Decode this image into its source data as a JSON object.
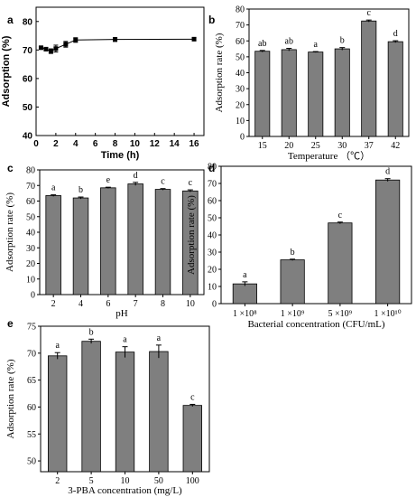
{
  "chart_data": [
    {
      "panel": "a",
      "type": "line",
      "x": [
        0.5,
        1,
        1.5,
        2,
        3,
        4,
        8,
        16
      ],
      "values": [
        70.8,
        70.3,
        69.6,
        70.5,
        72.0,
        73.5,
        73.7,
        73.8
      ],
      "errors": [
        0.4,
        0.5,
        0.8,
        1.2,
        1.0,
        0.8,
        0.7,
        0.5
      ],
      "xlabel": "Time (h)",
      "ylabel": "Adsorption (%)",
      "xlim": [
        0,
        17
      ],
      "ylim": [
        40,
        85
      ],
      "xticks": [
        "0",
        "2",
        "4",
        "6",
        "8",
        "10",
        "12",
        "14",
        "16"
      ],
      "yticks": [
        "40",
        "50",
        "60",
        "70",
        "80"
      ]
    },
    {
      "panel": "b",
      "type": "bar",
      "categories": [
        "15",
        "20",
        "25",
        "30",
        "37",
        "42"
      ],
      "values": [
        53.5,
        54.5,
        53.0,
        55.0,
        72.5,
        59.5
      ],
      "errors": [
        0.5,
        0.8,
        0.3,
        0.8,
        0.6,
        0.6
      ],
      "letters": [
        "ab",
        "ab",
        "a",
        "b",
        "c",
        "d"
      ],
      "xlabel": "Temperature （℃）",
      "ylabel": "Adsorption rate (%)",
      "ylim": [
        0,
        80
      ],
      "yticks": [
        "0",
        "10",
        "20",
        "30",
        "40",
        "50",
        "60",
        "70",
        "80"
      ]
    },
    {
      "panel": "c",
      "type": "bar",
      "categories": [
        "2",
        "4",
        "6",
        "7",
        "8",
        "10"
      ],
      "values": [
        63.5,
        62.0,
        68.5,
        71.0,
        67.5,
        66.5
      ],
      "errors": [
        0.5,
        0.6,
        0.4,
        1.0,
        0.5,
        0.7
      ],
      "letters": [
        "a",
        "b",
        "e",
        "d",
        "c",
        "c"
      ],
      "xlabel": "pH",
      "ylabel": "Adsorption rate (%)",
      "ylim": [
        0,
        80
      ],
      "yticks": [
        "0",
        "10",
        "20",
        "30",
        "40",
        "50",
        "60",
        "70",
        "80"
      ]
    },
    {
      "panel": "d",
      "type": "bar",
      "categories": [
        "1 ×10⁸",
        "1 ×10⁹",
        "5 ×10⁹",
        "1 ×10¹⁰"
      ],
      "values": [
        11.5,
        25.5,
        47.0,
        72.0
      ],
      "errors": [
        1.2,
        0.4,
        0.5,
        0.8
      ],
      "letters": [
        "a",
        "b",
        "c",
        "d"
      ],
      "xlabel": "Bacterial concentration (CFU/mL)",
      "ylabel": "Adsorption rate (%)",
      "ylim": [
        0,
        80
      ],
      "yticks": [
        "0",
        "10",
        "20",
        "30",
        "40",
        "50",
        "60",
        "70",
        "80"
      ]
    },
    {
      "panel": "e",
      "type": "bar",
      "categories": [
        "2",
        "5",
        "10",
        "50",
        "100"
      ],
      "values": [
        69.5,
        72.2,
        70.2,
        70.3,
        60.3
      ],
      "errors": [
        0.6,
        0.4,
        1.0,
        1.2,
        0.2
      ],
      "letters": [
        "a",
        "b",
        "a",
        "a",
        "c"
      ],
      "xlabel": "3-PBA concentration (mg/L)",
      "ylabel": "Adsorption rate (%)",
      "ylim": [
        48,
        75
      ],
      "yticks": [
        "50",
        "55",
        "60",
        "65",
        "70",
        "75"
      ]
    }
  ]
}
